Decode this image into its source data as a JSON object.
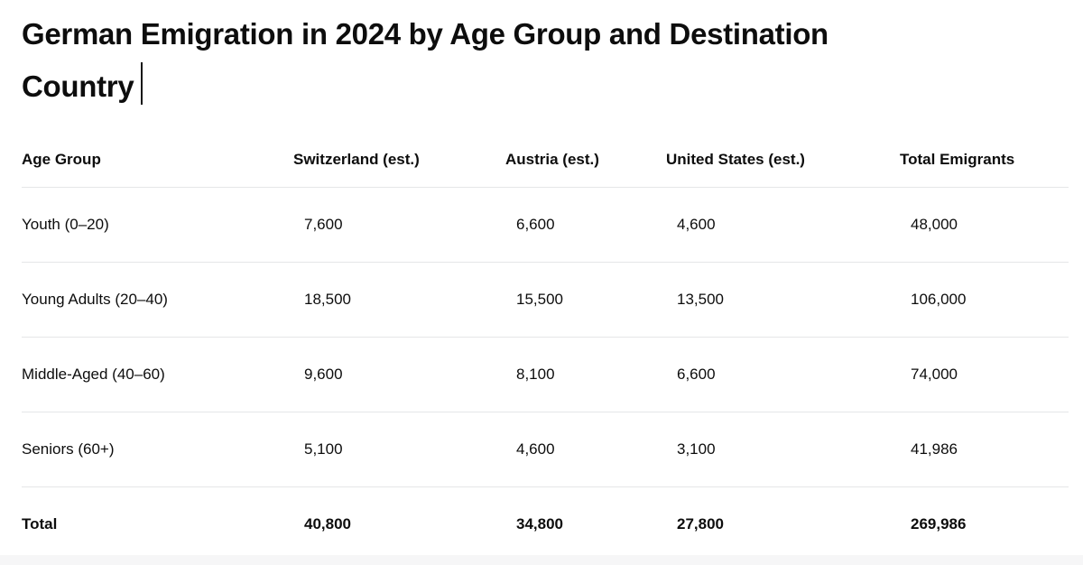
{
  "page": {
    "title_line1": "German Emigration in 2024 by Age Group and Destination",
    "title_line2": "Country"
  },
  "table": {
    "columns": [
      "Age Group",
      "Switzerland (est.)",
      "Austria (est.)",
      "United States (est.)",
      "Total Emigrants"
    ],
    "rows": [
      [
        "Youth (0–20)",
        "7,600",
        "6,600",
        "4,600",
        "48,000"
      ],
      [
        "Young Adults (20–40)",
        "18,500",
        "15,500",
        "13,500",
        "106,000"
      ],
      [
        "Middle-Aged (40–60)",
        "9,600",
        "8,100",
        "6,600",
        "74,000"
      ],
      [
        "Seniors (60+)",
        "5,100",
        "4,600",
        "3,100",
        "41,986"
      ]
    ],
    "total_row": [
      "Total",
      "40,800",
      "34,800",
      "27,800",
      "269,986"
    ]
  },
  "colors": {
    "text": "#0d0d0d",
    "divider": "#e5e6e8",
    "bottom_strip": "#f6f6f7"
  }
}
